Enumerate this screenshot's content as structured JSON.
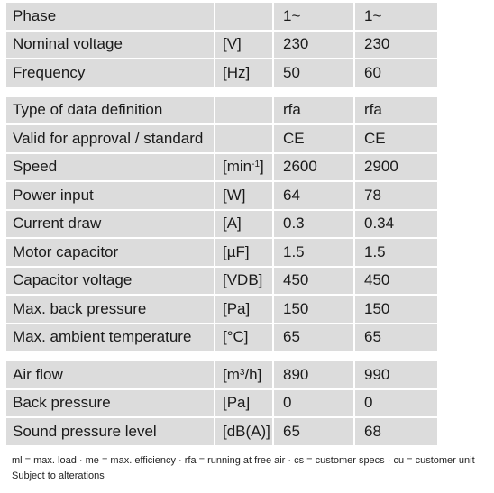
{
  "groups": [
    {
      "rows": [
        {
          "label": "Phase",
          "unit": "",
          "v1": "1~",
          "v2": "1~"
        },
        {
          "label": "Nominal voltage",
          "unit": "[V]",
          "v1": "230",
          "v2": "230"
        },
        {
          "label": "Frequency",
          "unit": "[Hz]",
          "v1": "50",
          "v2": "60"
        }
      ]
    },
    {
      "rows": [
        {
          "label": "Type of data definition",
          "unit": "",
          "v1": "rfa",
          "v2": "rfa"
        },
        {
          "label": "Valid for approval / standard",
          "unit": "",
          "v1": "CE",
          "v2": "CE"
        },
        {
          "label": "Speed",
          "unit": "[min-1]",
          "unit_base": "[min",
          "unit_sup": "-1",
          "unit_tail": "]",
          "v1": "2600",
          "v2": "2900"
        },
        {
          "label": "Power input",
          "unit": "[W]",
          "v1": "64",
          "v2": "78"
        },
        {
          "label": "Current draw",
          "unit": "[A]",
          "v1": "0.3",
          "v2": "0.34"
        },
        {
          "label": "Motor capacitor",
          "unit": "[µF]",
          "v1": "1.5",
          "v2": "1.5"
        },
        {
          "label": "Capacitor voltage",
          "unit": "[VDB]",
          "v1": "450",
          "v2": "450"
        },
        {
          "label": "Max. back pressure",
          "unit": "[Pa]",
          "v1": "150",
          "v2": "150"
        },
        {
          "label": "Max. ambient temperature",
          "unit": "[°C]",
          "v1": "65",
          "v2": "65"
        }
      ]
    },
    {
      "rows": [
        {
          "label": "Air flow",
          "unit": "[m3/h]",
          "unit_base": "[m",
          "unit_sup": "3",
          "unit_tail": "/h]",
          "v1": "890",
          "v2": "990"
        },
        {
          "label": "Back pressure",
          "unit": "[Pa]",
          "v1": "0",
          "v2": "0"
        },
        {
          "label": "Sound pressure level",
          "unit": "[dB(A)]",
          "v1": "65",
          "v2": "68"
        }
      ]
    }
  ],
  "footer": {
    "legend": "ml = max. load · me = max. efficiency · rfa = running at free air · cs = customer specs · cu = customer unit",
    "note": "Subject to alterations"
  }
}
